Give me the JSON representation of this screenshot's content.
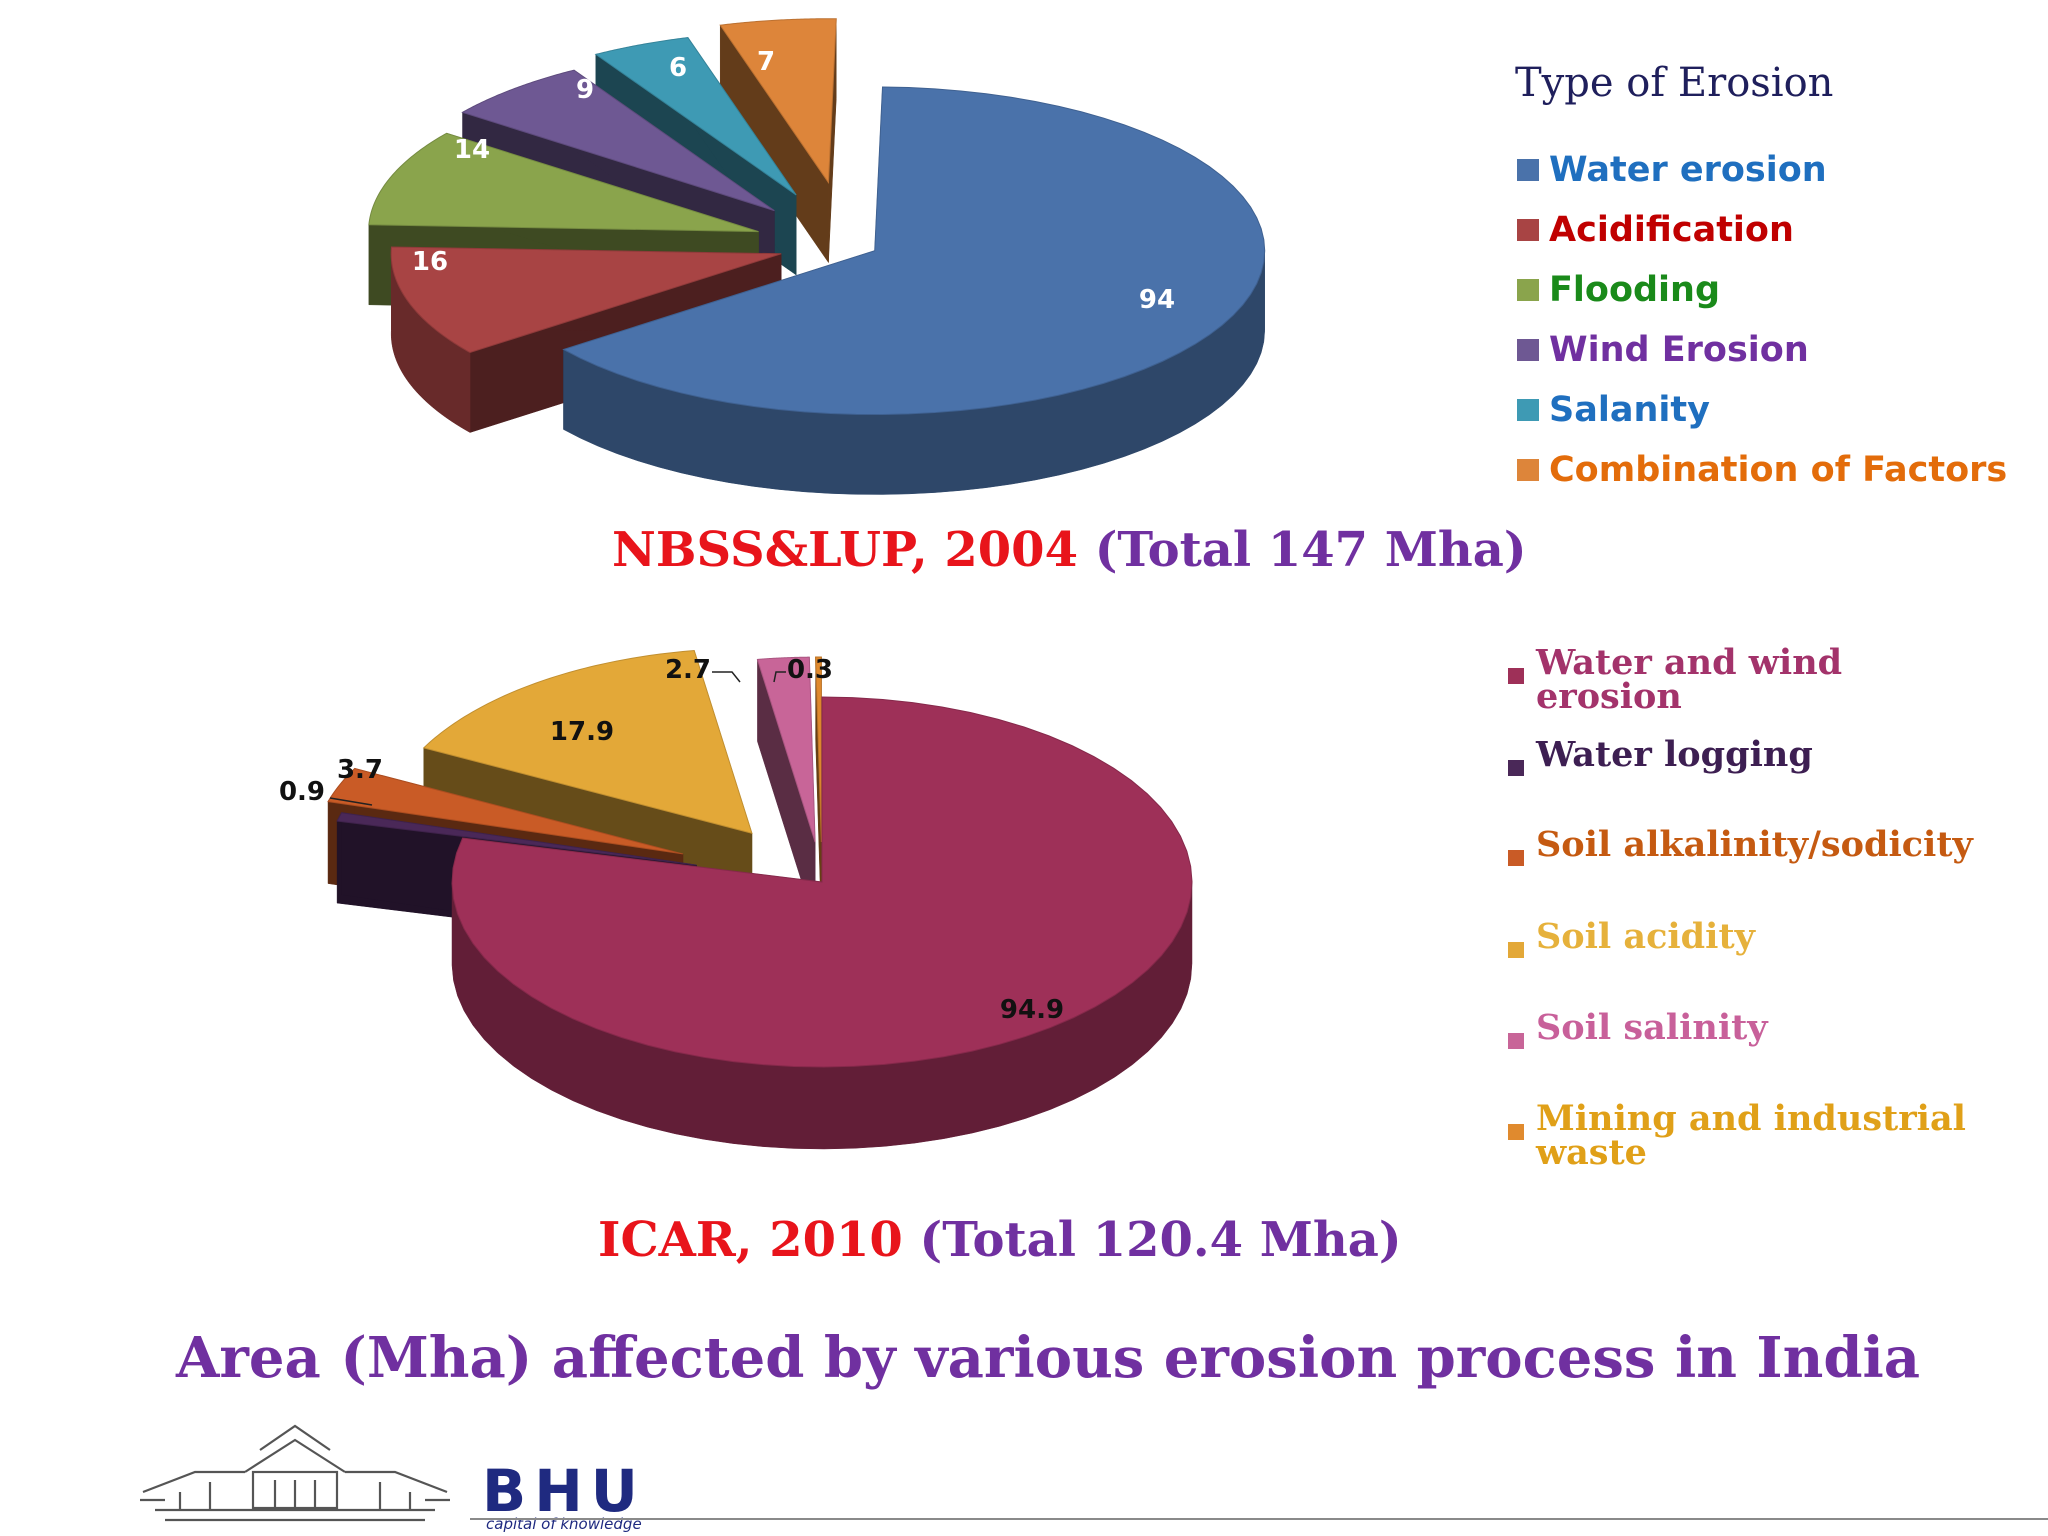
{
  "chart_data": [
    {
      "type": "pie",
      "title": "NBSS&LUP, 2004 (Total 147 Mha)",
      "legend_title": "Type of Erosion",
      "legend_position": "right",
      "slices": [
        {
          "label": "Water erosion",
          "value": 94,
          "color": "#4a72aa",
          "text_color": "#1f6fbf"
        },
        {
          "label": "Acidification",
          "value": 16,
          "color": "#a84444",
          "text_color": "#c00000"
        },
        {
          "label": "Flooding",
          "value": 14,
          "color": "#8aa44c",
          "text_color": "#1a8a1a"
        },
        {
          "label": "Wind Erosion",
          "value": 9,
          "color": "#6e5893",
          "text_color": "#7030a0"
        },
        {
          "label": "Salanity",
          "value": 6,
          "color": "#3e9ab4",
          "text_color": "#1f6fbf"
        },
        {
          "label": "Combination of Factors",
          "value": 7,
          "color": "#dd853a",
          "text_color": "#e36c0a"
        }
      ]
    },
    {
      "type": "pie",
      "title": "ICAR, 2010 (Total 120.4 Mha)",
      "legend_position": "right",
      "slices": [
        {
          "label": "Water and wind erosion",
          "value": 94.9,
          "value_label": "94.9",
          "color": "#9e3058",
          "text_color": "#a3336b"
        },
        {
          "label": "Water logging",
          "value": 0.9,
          "value_label": "0.9",
          "color": "#4a2858",
          "text_color": "#3d1f52"
        },
        {
          "label": "Soil alkalinity/sodicity",
          "value": 3.7,
          "value_label": "3.7",
          "color": "#c95b26",
          "text_color": "#c55a11"
        },
        {
          "label": "Soil acidity",
          "value": 17.9,
          "value_label": "17.9",
          "color": "#e3a838",
          "text_color": "#e6b13b"
        },
        {
          "label": "Soil salinity",
          "value": 2.7,
          "value_label": "2.7",
          "color": "#c86598",
          "text_color": "#c8609a"
        },
        {
          "label": "Mining and industrial waste",
          "value": 0.3,
          "value_label": "0.3",
          "color": "#e08a2e",
          "text_color": "#e0a018"
        }
      ]
    }
  ],
  "captions": {
    "chart1_source": "NBSS&LUP, 2004",
    "chart1_total": "(Total 147 Mha)",
    "chart2_source": "ICAR, 2010",
    "chart2_total": "(Total 120.4 Mha)"
  },
  "slide_title": "Area (Mha) affected by various erosion process in India",
  "logo": {
    "name": "BHU",
    "tagline": "capital of knowledge"
  }
}
